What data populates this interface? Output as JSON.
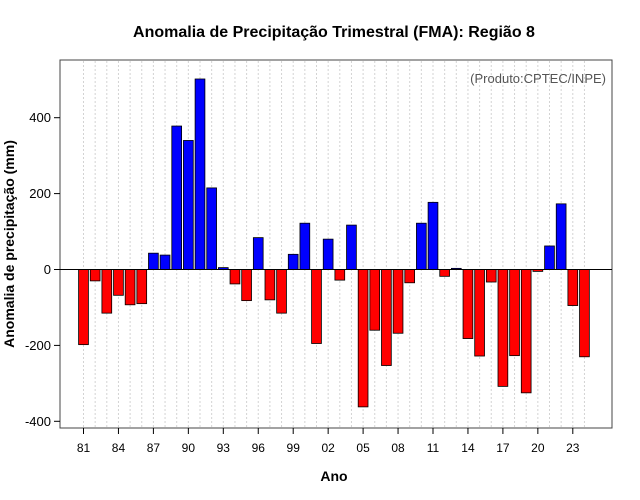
{
  "chart_data": {
    "type": "bar",
    "title": "Anomalia de Precipitação Trimestral (FMA): Região 8",
    "xlabel": "Ano",
    "ylabel": "Anomalia de precipitação (mm)",
    "annotation": "(Produto:CPTEC/INPE)",
    "ylim": [
      -410,
      560
    ],
    "yticks": [
      -400,
      -200,
      0,
      200,
      400
    ],
    "xtick_labels": [
      "81",
      "84",
      "87",
      "90",
      "93",
      "96",
      "99",
      "02",
      "05",
      "08",
      "11",
      "14",
      "17",
      "20",
      "23"
    ],
    "xtick_years": [
      1981,
      1984,
      1987,
      1990,
      1993,
      1996,
      1999,
      2002,
      2005,
      2008,
      2011,
      2014,
      2017,
      2020,
      2023
    ],
    "years": [
      1981,
      1982,
      1983,
      1984,
      1985,
      1986,
      1987,
      1988,
      1989,
      1990,
      1991,
      1992,
      1993,
      1994,
      1995,
      1996,
      1997,
      1998,
      1999,
      2000,
      2001,
      2002,
      2003,
      2004,
      2005,
      2006,
      2007,
      2008,
      2009,
      2010,
      2011,
      2012,
      2013,
      2014,
      2015,
      2016,
      2017,
      2018,
      2019,
      2020,
      2021,
      2022,
      2023,
      2024
    ],
    "values": [
      -198,
      -30,
      -115,
      -68,
      -93,
      -90,
      43,
      38,
      378,
      340,
      502,
      215,
      5,
      -38,
      -82,
      84,
      -80,
      -115,
      40,
      122,
      -195,
      80,
      -28,
      117,
      -362,
      -160,
      -253,
      -168,
      -35,
      122,
      177,
      -18,
      3,
      -182,
      -228,
      -33,
      -308,
      -227,
      -325,
      -5,
      62,
      173,
      -95,
      -230
    ],
    "positive_color": "#0000ff",
    "negative_color": "#ff0000",
    "grid": true
  }
}
